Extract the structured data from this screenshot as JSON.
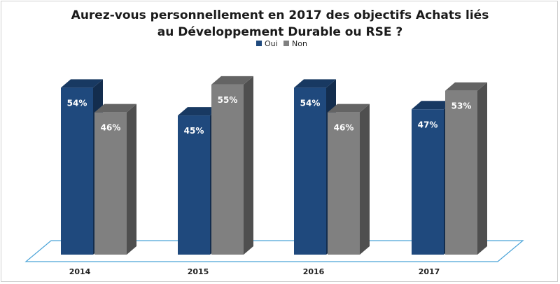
{
  "chart_data": {
    "type": "bar",
    "title": "Aurez-vous personnellement en 2017 des objectifs Achats liés au Développement Durable ou RSE ?",
    "title_lines": [
      "Aurez-vous personnellement en 2017 des objectifs Achats liés",
      "au Développement Durable ou RSE ?"
    ],
    "categories": [
      "2014",
      "2015",
      "2016",
      "2017"
    ],
    "series": [
      {
        "name": "Oui",
        "values": [
          54,
          45,
          54,
          47
        ],
        "labels": [
          "54%",
          "45%",
          "54%",
          "47%"
        ],
        "color": "#1f497d"
      },
      {
        "name": "Non",
        "values": [
          46,
          55,
          46,
          53
        ],
        "labels": [
          "46%",
          "55%",
          "46%",
          "53%"
        ],
        "color": "#808080"
      }
    ],
    "ylim": [
      0,
      60
    ],
    "legend_position": "top-center",
    "grid": false,
    "floor_color": "#4aa3d8"
  }
}
